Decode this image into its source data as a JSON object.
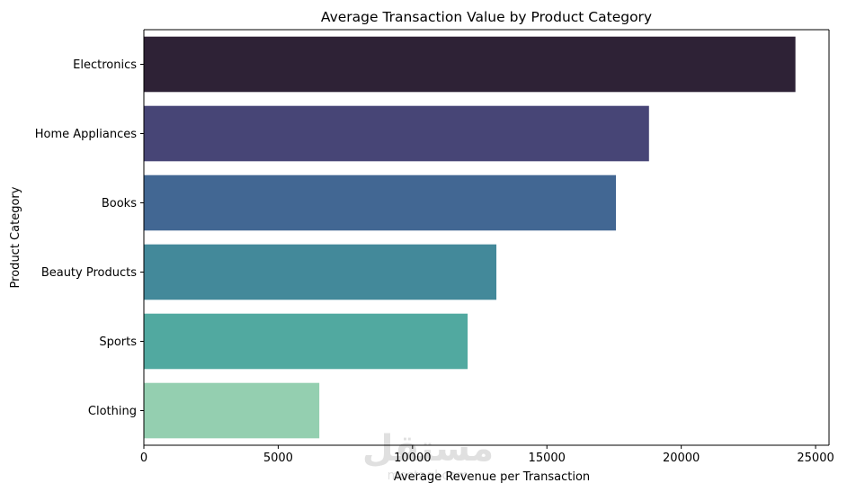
{
  "chart_data": {
    "type": "bar",
    "orientation": "horizontal",
    "title": "Average Transaction Value by Product Category",
    "xlabel": "Average Revenue per Transaction",
    "ylabel": "Product Category",
    "categories": [
      "Electronics",
      "Home Appliances",
      "Books",
      "Beauty Products",
      "Sports",
      "Clothing"
    ],
    "values": [
      24250,
      18800,
      17570,
      13120,
      12050,
      6530
    ],
    "colors": [
      "#2e2236",
      "#474576",
      "#426793",
      "#43899a",
      "#51a9a0",
      "#94cfb0"
    ],
    "xlim": [
      0,
      25500
    ],
    "xticks": [
      0,
      5000,
      10000,
      15000,
      20000,
      25000
    ],
    "grid": false,
    "legend": "none"
  },
  "watermark": {
    "logo_text": "مستقل",
    "sub_text": "mostaql.com"
  }
}
